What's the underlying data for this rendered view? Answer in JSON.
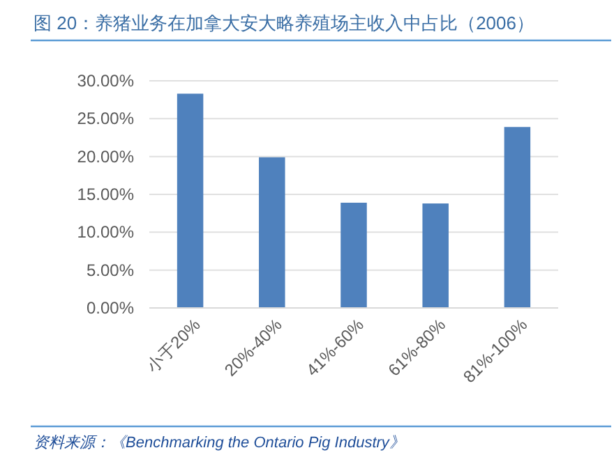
{
  "chart_data": {
    "type": "bar",
    "title": "图 20：养猪业务在加拿大安大略养殖场主收入中占比（2006）",
    "categories": [
      "小于20%",
      "20%-40%",
      "41%-60%",
      "61%-80%",
      "81%-100%"
    ],
    "values": [
      28.3,
      19.9,
      13.9,
      13.8,
      23.9
    ],
    "color": "#4f81bd",
    "ylim": [
      0,
      30
    ],
    "yticks": [
      {
        "value": 0,
        "label": "0.00%"
      },
      {
        "value": 5,
        "label": "5.00%"
      },
      {
        "value": 10,
        "label": "10.00%"
      },
      {
        "value": 15,
        "label": "15.00%"
      },
      {
        "value": 20,
        "label": "20.00%"
      },
      {
        "value": 25,
        "label": "25.00%"
      },
      {
        "value": 30,
        "label": "30.00%"
      }
    ],
    "grid": "y",
    "annotations": [
      "资料来源：《Benchmarking the Ontario Pig Industry》"
    ]
  }
}
